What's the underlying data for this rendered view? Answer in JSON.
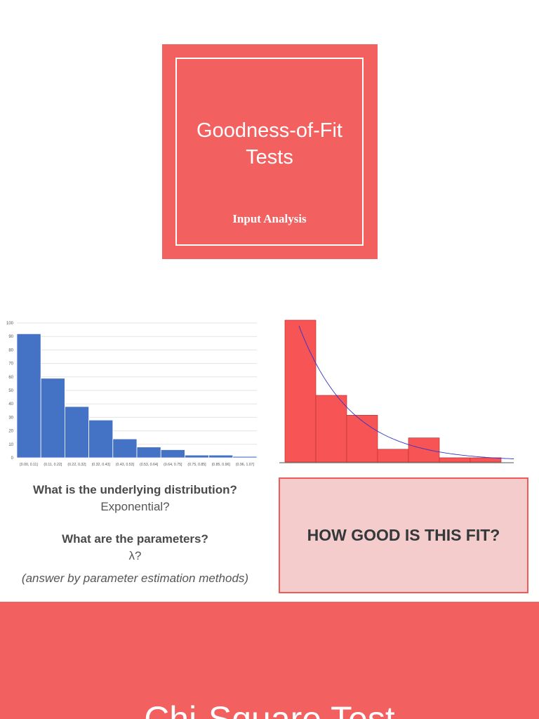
{
  "title_card": {
    "title": "Goodness-of-Fit Tests",
    "subtitle": "Input Analysis"
  },
  "questions": {
    "q1": "What is the underlying distribution?",
    "a1": "Exponential?",
    "q2": "What are the parameters?",
    "a2": "λ?",
    "note": "(answer by parameter estimation methods)"
  },
  "fit_box": {
    "label": "HOW GOOD IS THIS FIT?"
  },
  "bottom": {
    "title": "Chi-Square Test"
  },
  "colors": {
    "accent": "#f26060",
    "left_bars": "#4472c4",
    "right_bars": "#f75555",
    "fit_curve": "#3333cc",
    "fit_box_bg": "#f5cccc"
  },
  "chart_data": [
    {
      "type": "bar",
      "categories": [
        "[0.00, 0.11]",
        "(0.11, 0.22]",
        "(0.22, 0.32]",
        "(0.32, 0.43]",
        "(0.43, 0.53]",
        "(0.53, 0.64]",
        "(0.64, 0.75]",
        "(0.75, 0.85]",
        "(0.85, 0.96]",
        "(0.96, 1.07]"
      ],
      "values": [
        92,
        59,
        38,
        28,
        14,
        8,
        6,
        2,
        2,
        1
      ],
      "yticks": [
        0,
        10,
        20,
        30,
        40,
        50,
        60,
        70,
        80,
        90,
        100
      ],
      "ylim": [
        0,
        100
      ],
      "grid": true,
      "title": "",
      "xlabel": "",
      "ylabel": ""
    },
    {
      "type": "bar",
      "values": [
        100,
        47,
        33,
        9,
        17,
        3,
        3
      ],
      "ylim": [
        0,
        100
      ],
      "fit_curve": "exponential",
      "grid": false,
      "title": "",
      "xlabel": "",
      "ylabel": ""
    }
  ]
}
